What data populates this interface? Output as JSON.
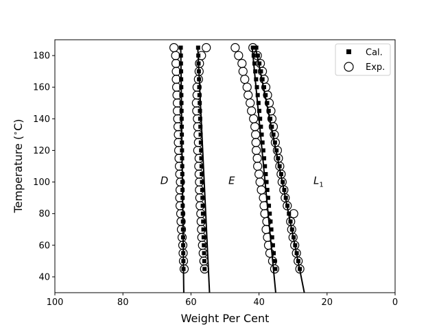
{
  "chart_data": {
    "type": "scatter",
    "xlabel": "Weight Per Cent",
    "ylabel": "Temperature ($^\\circ$C)",
    "ylabel_display": "Temperature (",
    "ylabel_unit": "C)",
    "xlim": [
      100,
      0
    ],
    "ylim": [
      30,
      190
    ],
    "x_ticks": [
      100,
      80,
      60,
      40,
      20,
      0
    ],
    "y_ticks": [
      40,
      60,
      80,
      100,
      120,
      140,
      160,
      180
    ],
    "grid": false,
    "legend": {
      "placement": "top-right",
      "entries": [
        "Cal.",
        "Exp."
      ]
    },
    "region_labels": [
      {
        "text": "D",
        "x": 69,
        "y": 101
      },
      {
        "text": "E",
        "x": 49,
        "y": 101
      },
      {
        "text": "L",
        "sub": "1",
        "x": 24,
        "y": 101
      }
    ],
    "curves": [
      {
        "points": [
          [
            62.1,
            28
          ],
          [
            63.0,
            185
          ]
        ]
      },
      {
        "points": [
          [
            54.5,
            28
          ],
          [
            58.0,
            185
          ]
        ]
      },
      {
        "points": [
          [
            35.0,
            28
          ],
          [
            42.0,
            185
          ]
        ]
      },
      {
        "points": [
          [
            26.5,
            28
          ],
          [
            41.0,
            185
          ]
        ]
      }
    ],
    "series": [
      {
        "name": "Cal.",
        "marker": "square",
        "groups": [
          {
            "x_at_45": 62.2,
            "x_at_185": 63.0
          },
          {
            "x_at_45": 56.0,
            "x_at_185": 57.9
          },
          {
            "x_at_45": 35.2,
            "x_at_185": 41.8
          },
          {
            "x_at_45": 28.0,
            "x_at_185": 40.8
          }
        ],
        "y": [
          45,
          50,
          55,
          60,
          65,
          70,
          75,
          80,
          85,
          90,
          95,
          100,
          105,
          110,
          115,
          120,
          125,
          130,
          135,
          140,
          145,
          150,
          155,
          160,
          165,
          170,
          175,
          180,
          185
        ]
      },
      {
        "name": "Exp.",
        "marker": "circle",
        "groups": [
          {
            "x": [
              62.0,
              62.2,
              62.3,
              62.4,
              62.6,
              62.8,
              62.9,
              63.0,
              63.2,
              63.3,
              63.2,
              63.1,
              63.3,
              63.4,
              63.5,
              63.6,
              63.7,
              63.7,
              63.8,
              63.9,
              64.0,
              64.0,
              64.1,
              64.2,
              64.3,
              64.3,
              64.4,
              64.5,
              65.0
            ],
            "y": [
              45,
              50,
              55,
              60,
              65,
              70,
              75,
              80,
              85,
              90,
              95,
              100,
              105,
              110,
              115,
              120,
              125,
              130,
              135,
              140,
              145,
              150,
              155,
              160,
              165,
              170,
              175,
              180,
              185
            ]
          },
          {
            "x": [
              56.0,
              56.2,
              56.4,
              56.6,
              56.8,
              56.9,
              57.0,
              57.1,
              57.3,
              57.4,
              57.5,
              57.5,
              57.6,
              57.7,
              57.6,
              58.0,
              57.8,
              57.9,
              58.0,
              58.1,
              58.3,
              58.4,
              58.2,
              58.2,
              57.8,
              57.6,
              57.5,
              56.9,
              55.5
            ],
            "y": [
              45,
              50,
              55,
              60,
              65,
              70,
              75,
              80,
              85,
              90,
              95,
              100,
              105,
              110,
              115,
              120,
              125,
              130,
              135,
              140,
              145,
              150,
              155,
              160,
              165,
              170,
              175,
              180,
              185
            ]
          },
          {
            "x": [
              35.4,
              36.0,
              36.8,
              37.2,
              37.5,
              37.9,
              37.7,
              38.3,
              38.5,
              38.7,
              39.3,
              39.7,
              40.0,
              40.4,
              40.5,
              40.8,
              40.9,
              41.0,
              41.2,
              41.6,
              42.2,
              42.6,
              43.2,
              43.5,
              44.2,
              44.7,
              45.0,
              46.0,
              47.0
            ],
            "y": [
              45,
              50,
              55,
              60,
              65,
              70,
              75,
              80,
              85,
              90,
              95,
              100,
              105,
              110,
              115,
              120,
              125,
              130,
              135,
              140,
              145,
              150,
              155,
              160,
              165,
              170,
              175,
              180,
              185
            ]
          },
          {
            "x": [
              28.0,
              28.5,
              29.0,
              29.5,
              30.0,
              30.4,
              30.7,
              29.8,
              31.7,
              32.3,
              32.7,
              33.2,
              33.5,
              33.9,
              34.3,
              34.6,
              35.2,
              35.5,
              35.8,
              36.2,
              36.5,
              37.0,
              37.5,
              38.0,
              38.5,
              39.0,
              39.6,
              40.5,
              41.8
            ],
            "y": [
              45,
              50,
              55,
              60,
              65,
              70,
              75,
              80,
              85,
              90,
              95,
              100,
              105,
              110,
              115,
              120,
              125,
              130,
              135,
              140,
              145,
              150,
              155,
              160,
              165,
              170,
              175,
              180,
              185
            ]
          }
        ]
      }
    ]
  }
}
